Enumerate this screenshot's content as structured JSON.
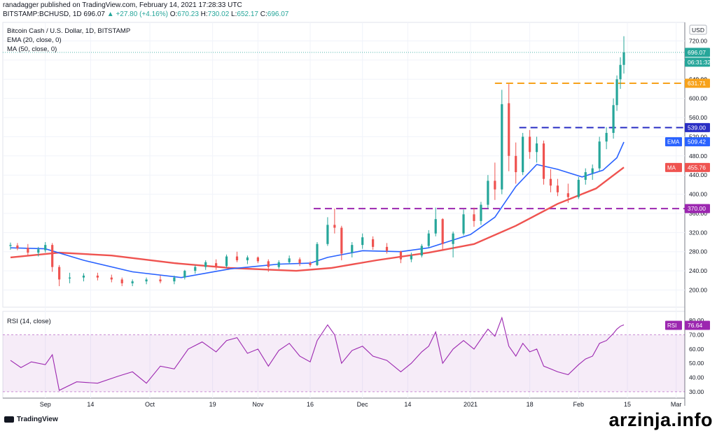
{
  "header": {
    "publisher_line": "ranadagger published on TradingView.com, February 14, 2021 17:28:33 UTC",
    "symbol": "BITSTAMP:BCHUSD, 1D",
    "last": "696.07",
    "change": "▲ +27.80 (+4.16%)",
    "open_label": "O:",
    "open": "670.23",
    "high_label": "H:",
    "high": "730.02",
    "low_label": "L:",
    "low": "652.17",
    "close_label": "C:",
    "close": "696.07"
  },
  "legend": {
    "title": "Bitcoin Cash / U.S. Dollar, 1D, BITSTAMP",
    "ema": "EMA (20, close, 0)",
    "ma": "MA (50, close, 0)",
    "rsi": "RSI (14, close)"
  },
  "chart_data": [
    {
      "type": "candlestick",
      "title": "Bitcoin Cash / U.S. Dollar, 1D, BITSTAMP",
      "currency": "USD",
      "ylim": [
        170,
        750
      ],
      "y_ticks": [
        200,
        240,
        280,
        320,
        360,
        400,
        440,
        480,
        520,
        560,
        600,
        640,
        680,
        720
      ],
      "x_tick_labels": [
        "Sep",
        "14",
        "Oct",
        "19",
        "Nov",
        "16",
        "Dec",
        "14",
        "2021",
        "18",
        "Feb",
        "15",
        "Mar"
      ],
      "ohlc": [
        {
          "date": "2020-08-22",
          "o": 292,
          "h": 299,
          "l": 284,
          "c": 294
        },
        {
          "date": "2020-08-24",
          "o": 293,
          "h": 298,
          "l": 283,
          "c": 287
        },
        {
          "date": "2020-08-27",
          "o": 288,
          "h": 296,
          "l": 272,
          "c": 278
        },
        {
          "date": "2020-08-30",
          "o": 278,
          "h": 290,
          "l": 270,
          "c": 285
        },
        {
          "date": "2020-09-01",
          "o": 283,
          "h": 300,
          "l": 278,
          "c": 294
        },
        {
          "date": "2020-09-03",
          "o": 294,
          "h": 298,
          "l": 238,
          "c": 248
        },
        {
          "date": "2020-09-05",
          "o": 248,
          "h": 252,
          "l": 208,
          "c": 222
        },
        {
          "date": "2020-09-08",
          "o": 224,
          "h": 236,
          "l": 214,
          "c": 226
        },
        {
          "date": "2020-09-12",
          "o": 226,
          "h": 235,
          "l": 218,
          "c": 230
        },
        {
          "date": "2020-09-16",
          "o": 230,
          "h": 236,
          "l": 220,
          "c": 226
        },
        {
          "date": "2020-09-20",
          "o": 226,
          "h": 232,
          "l": 216,
          "c": 222
        },
        {
          "date": "2020-09-23",
          "o": 222,
          "h": 226,
          "l": 208,
          "c": 214
        },
        {
          "date": "2020-09-26",
          "o": 214,
          "h": 222,
          "l": 208,
          "c": 218
        },
        {
          "date": "2020-09-30",
          "o": 218,
          "h": 226,
          "l": 212,
          "c": 222
        },
        {
          "date": "2020-10-04",
          "o": 222,
          "h": 230,
          "l": 214,
          "c": 218
        },
        {
          "date": "2020-10-08",
          "o": 218,
          "h": 230,
          "l": 212,
          "c": 226
        },
        {
          "date": "2020-10-11",
          "o": 226,
          "h": 242,
          "l": 222,
          "c": 240
        },
        {
          "date": "2020-10-14",
          "o": 240,
          "h": 252,
          "l": 234,
          "c": 248
        },
        {
          "date": "2020-10-17",
          "o": 248,
          "h": 262,
          "l": 242,
          "c": 258
        },
        {
          "date": "2020-10-20",
          "o": 256,
          "h": 264,
          "l": 242,
          "c": 250
        },
        {
          "date": "2020-10-23",
          "o": 250,
          "h": 274,
          "l": 246,
          "c": 270
        },
        {
          "date": "2020-10-26",
          "o": 270,
          "h": 280,
          "l": 258,
          "c": 262
        },
        {
          "date": "2020-10-29",
          "o": 262,
          "h": 272,
          "l": 254,
          "c": 268
        },
        {
          "date": "2020-11-01",
          "o": 268,
          "h": 270,
          "l": 256,
          "c": 260
        },
        {
          "date": "2020-11-04",
          "o": 260,
          "h": 264,
          "l": 238,
          "c": 248
        },
        {
          "date": "2020-11-07",
          "o": 248,
          "h": 262,
          "l": 244,
          "c": 258
        },
        {
          "date": "2020-11-10",
          "o": 258,
          "h": 272,
          "l": 254,
          "c": 266
        },
        {
          "date": "2020-11-13",
          "o": 264,
          "h": 268,
          "l": 250,
          "c": 256
        },
        {
          "date": "2020-11-16",
          "o": 256,
          "h": 260,
          "l": 248,
          "c": 252
        },
        {
          "date": "2020-11-18",
          "o": 252,
          "h": 300,
          "l": 250,
          "c": 296
        },
        {
          "date": "2020-11-21",
          "o": 296,
          "h": 352,
          "l": 292,
          "c": 336
        },
        {
          "date": "2020-11-23",
          "o": 336,
          "h": 370,
          "l": 318,
          "c": 330
        },
        {
          "date": "2020-11-25",
          "o": 330,
          "h": 334,
          "l": 262,
          "c": 276
        },
        {
          "date": "2020-11-28",
          "o": 278,
          "h": 300,
          "l": 268,
          "c": 294
        },
        {
          "date": "2020-12-01",
          "o": 294,
          "h": 318,
          "l": 286,
          "c": 310
        },
        {
          "date": "2020-12-04",
          "o": 306,
          "h": 312,
          "l": 284,
          "c": 290
        },
        {
          "date": "2020-12-08",
          "o": 290,
          "h": 298,
          "l": 276,
          "c": 282
        },
        {
          "date": "2020-12-12",
          "o": 280,
          "h": 282,
          "l": 256,
          "c": 264
        },
        {
          "date": "2020-12-15",
          "o": 264,
          "h": 278,
          "l": 258,
          "c": 272
        },
        {
          "date": "2020-12-18",
          "o": 272,
          "h": 296,
          "l": 268,
          "c": 292
        },
        {
          "date": "2020-12-20",
          "o": 292,
          "h": 325,
          "l": 288,
          "c": 318
        },
        {
          "date": "2020-12-22",
          "o": 318,
          "h": 372,
          "l": 312,
          "c": 348
        },
        {
          "date": "2020-12-24",
          "o": 348,
          "h": 350,
          "l": 282,
          "c": 296
        },
        {
          "date": "2020-12-27",
          "o": 296,
          "h": 322,
          "l": 268,
          "c": 318
        },
        {
          "date": "2020-12-30",
          "o": 318,
          "h": 368,
          "l": 314,
          "c": 358
        },
        {
          "date": "2021-01-02",
          "o": 358,
          "h": 372,
          "l": 332,
          "c": 344
        },
        {
          "date": "2021-01-04",
          "o": 344,
          "h": 384,
          "l": 336,
          "c": 378
        },
        {
          "date": "2021-01-06",
          "o": 378,
          "h": 440,
          "l": 370,
          "c": 428
        },
        {
          "date": "2021-01-08",
          "o": 428,
          "h": 466,
          "l": 388,
          "c": 410
        },
        {
          "date": "2021-01-10",
          "o": 410,
          "h": 618,
          "l": 400,
          "c": 588
        },
        {
          "date": "2021-01-12",
          "o": 590,
          "h": 630,
          "l": 448,
          "c": 480
        },
        {
          "date": "2021-01-14",
          "o": 480,
          "h": 508,
          "l": 422,
          "c": 446
        },
        {
          "date": "2021-01-16",
          "o": 446,
          "h": 528,
          "l": 440,
          "c": 520
        },
        {
          "date": "2021-01-18",
          "o": 520,
          "h": 534,
          "l": 474,
          "c": 488
        },
        {
          "date": "2021-01-20",
          "o": 488,
          "h": 520,
          "l": 466,
          "c": 506
        },
        {
          "date": "2021-01-22",
          "o": 506,
          "h": 512,
          "l": 420,
          "c": 432
        },
        {
          "date": "2021-01-24",
          "o": 432,
          "h": 452,
          "l": 404,
          "c": 418
        },
        {
          "date": "2021-01-26",
          "o": 418,
          "h": 432,
          "l": 396,
          "c": 404
        },
        {
          "date": "2021-01-29",
          "o": 402,
          "h": 422,
          "l": 382,
          "c": 394
        },
        {
          "date": "2021-02-01",
          "o": 394,
          "h": 436,
          "l": 390,
          "c": 430
        },
        {
          "date": "2021-02-03",
          "o": 430,
          "h": 454,
          "l": 420,
          "c": 446
        },
        {
          "date": "2021-02-05",
          "o": 444,
          "h": 462,
          "l": 430,
          "c": 454
        },
        {
          "date": "2021-02-07",
          "o": 454,
          "h": 520,
          "l": 448,
          "c": 510
        },
        {
          "date": "2021-02-09",
          "o": 510,
          "h": 540,
          "l": 494,
          "c": 528
        },
        {
          "date": "2021-02-11",
          "o": 528,
          "h": 600,
          "l": 516,
          "c": 586
        },
        {
          "date": "2021-02-12",
          "o": 586,
          "h": 648,
          "l": 574,
          "c": 640
        },
        {
          "date": "2021-02-13",
          "o": 640,
          "h": 686,
          "l": 620,
          "c": 670
        },
        {
          "date": "2021-02-14",
          "o": 670,
          "h": 730,
          "l": 652,
          "c": 696
        }
      ],
      "ema20": [
        [
          "2020-08-22",
          288
        ],
        [
          "2020-09-01",
          286
        ],
        [
          "2020-09-12",
          262
        ],
        [
          "2020-09-26",
          238
        ],
        [
          "2020-10-10",
          226
        ],
        [
          "2020-10-24",
          244
        ],
        [
          "2020-11-07",
          254
        ],
        [
          "2020-11-16",
          256
        ],
        [
          "2020-11-21",
          268
        ],
        [
          "2020-12-01",
          282
        ],
        [
          "2020-12-12",
          280
        ],
        [
          "2020-12-20",
          288
        ],
        [
          "2021-01-01",
          316
        ],
        [
          "2021-01-08",
          352
        ],
        [
          "2021-01-14",
          416
        ],
        [
          "2021-01-20",
          462
        ],
        [
          "2021-01-26",
          452
        ],
        [
          "2021-02-02",
          436
        ],
        [
          "2021-02-08",
          450
        ],
        [
          "2021-02-12",
          476
        ],
        [
          "2021-02-14",
          509
        ]
      ],
      "ma50": [
        [
          "2020-08-22",
          268
        ],
        [
          "2020-09-05",
          278
        ],
        [
          "2020-09-20",
          272
        ],
        [
          "2020-10-08",
          256
        ],
        [
          "2020-10-24",
          246
        ],
        [
          "2020-11-12",
          240
        ],
        [
          "2020-11-22",
          246
        ],
        [
          "2020-12-05",
          262
        ],
        [
          "2020-12-20",
          278
        ],
        [
          "2021-01-02",
          296
        ],
        [
          "2021-01-14",
          334
        ],
        [
          "2021-01-26",
          380
        ],
        [
          "2021-02-06",
          412
        ],
        [
          "2021-02-14",
          456
        ]
      ],
      "levels": [
        {
          "label": "631.71",
          "value": 631.71,
          "color": "#f7a21b",
          "from": "2021-01-08"
        },
        {
          "label": "539.00",
          "value": 539.0,
          "color": "#2a2ec4",
          "from": "2021-01-15"
        },
        {
          "label": "370.00",
          "value": 370.0,
          "color": "#9c27b0",
          "from": "2020-11-17"
        }
      ],
      "price_labels": {
        "last": {
          "text": "696.07",
          "value": 696.07,
          "color": "#26a69a"
        },
        "countdown": {
          "text": "06:31:32",
          "color": "#26a69a"
        },
        "ema": {
          "label": "EMA",
          "value": "509.42",
          "color": "#2962ff"
        },
        "ma": {
          "label": "MA",
          "value": "455.76",
          "color": "#ef5350"
        }
      },
      "partial_tick": "640.00",
      "series_colors": {
        "up": "#26a69a",
        "down": "#ef5350",
        "ema": "#2962ff",
        "ma": "#ef5350"
      }
    },
    {
      "type": "line",
      "title": "RSI (14, close)",
      "ylim": [
        27,
        85
      ],
      "y_ticks": [
        30,
        40,
        50,
        60,
        70,
        80
      ],
      "band": [
        30,
        70
      ],
      "last": {
        "label": "RSI",
        "value": "76.64",
        "color": "#9c27b0"
      },
      "points": [
        [
          "2020-08-22",
          52
        ],
        [
          "2020-08-25",
          47
        ],
        [
          "2020-08-28",
          51
        ],
        [
          "2020-09-01",
          49
        ],
        [
          "2020-09-03",
          56
        ],
        [
          "2020-09-05",
          31
        ],
        [
          "2020-09-10",
          37
        ],
        [
          "2020-09-16",
          36
        ],
        [
          "2020-09-22",
          41
        ],
        [
          "2020-09-26",
          44
        ],
        [
          "2020-09-30",
          36
        ],
        [
          "2020-10-04",
          48
        ],
        [
          "2020-10-08",
          46
        ],
        [
          "2020-10-12",
          60
        ],
        [
          "2020-10-16",
          65
        ],
        [
          "2020-10-20",
          58
        ],
        [
          "2020-10-23",
          66
        ],
        [
          "2020-10-26",
          68
        ],
        [
          "2020-10-29",
          57
        ],
        [
          "2020-11-01",
          60
        ],
        [
          "2020-11-04",
          48
        ],
        [
          "2020-11-07",
          59
        ],
        [
          "2020-11-10",
          64
        ],
        [
          "2020-11-13",
          55
        ],
        [
          "2020-11-16",
          51
        ],
        [
          "2020-11-18",
          66
        ],
        [
          "2020-11-21",
          77
        ],
        [
          "2020-11-23",
          70
        ],
        [
          "2020-11-25",
          50
        ],
        [
          "2020-11-28",
          59
        ],
        [
          "2020-12-01",
          62
        ],
        [
          "2020-12-04",
          55
        ],
        [
          "2020-12-08",
          52
        ],
        [
          "2020-12-12",
          44
        ],
        [
          "2020-12-15",
          50
        ],
        [
          "2020-12-18",
          58
        ],
        [
          "2020-12-20",
          62
        ],
        [
          "2020-12-22",
          72
        ],
        [
          "2020-12-24",
          50
        ],
        [
          "2020-12-27",
          60
        ],
        [
          "2020-12-30",
          66
        ],
        [
          "2021-01-02",
          60
        ],
        [
          "2021-01-04",
          67
        ],
        [
          "2021-01-06",
          74
        ],
        [
          "2021-01-08",
          69
        ],
        [
          "2021-01-10",
          82
        ],
        [
          "2021-01-12",
          62
        ],
        [
          "2021-01-14",
          55
        ],
        [
          "2021-01-16",
          64
        ],
        [
          "2021-01-18",
          58
        ],
        [
          "2021-01-20",
          60
        ],
        [
          "2021-01-22",
          48
        ],
        [
          "2021-01-24",
          46
        ],
        [
          "2021-01-26",
          44
        ],
        [
          "2021-01-29",
          42
        ],
        [
          "2021-02-01",
          49
        ],
        [
          "2021-02-03",
          53
        ],
        [
          "2021-02-05",
          55
        ],
        [
          "2021-02-07",
          64
        ],
        [
          "2021-02-09",
          66
        ],
        [
          "2021-02-11",
          71
        ],
        [
          "2021-02-12",
          74
        ],
        [
          "2021-02-13",
          76
        ],
        [
          "2021-02-14",
          77
        ]
      ]
    }
  ],
  "footer": {
    "brand": "TradingView"
  },
  "watermark": "arzinja.info"
}
